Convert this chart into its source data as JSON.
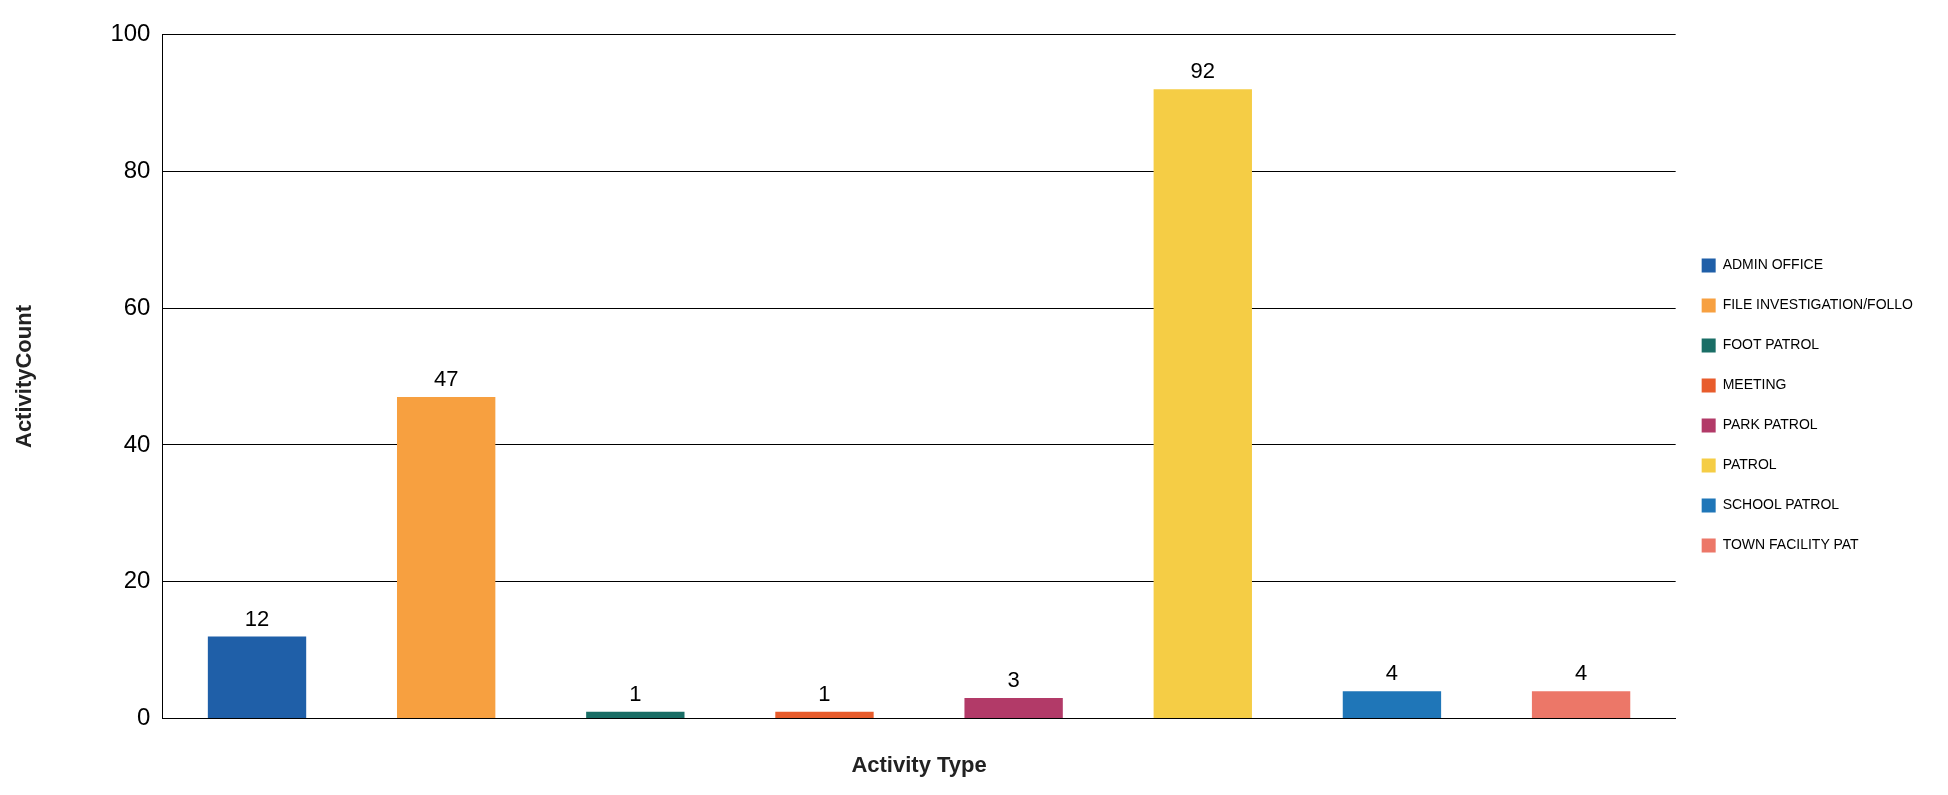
{
  "chart_data": {
    "type": "bar",
    "xlabel": "Activity Type",
    "ylabel": "ActivityCount",
    "categories": [
      null,
      null,
      null,
      null,
      null,
      null,
      null,
      null
    ],
    "series": [
      {
        "name": "ADMIN OFFICE",
        "color": "#1f5fa8",
        "values": [
          12,
          null,
          null,
          null,
          null,
          null,
          null,
          null
        ]
      },
      {
        "name": "FILE INVESTIGATION/FOLLO",
        "color": "#f7a040",
        "values": [
          null,
          47,
          null,
          null,
          null,
          null,
          null,
          null
        ]
      },
      {
        "name": "FOOT PATROL",
        "color": "#1a6e66",
        "values": [
          null,
          null,
          1,
          null,
          null,
          null,
          null,
          null
        ]
      },
      {
        "name": "MEETING",
        "color": "#e85c2c",
        "values": [
          null,
          null,
          null,
          1,
          null,
          null,
          null,
          null
        ]
      },
      {
        "name": "PARK PATROL",
        "color": "#b23a68",
        "values": [
          null,
          null,
          null,
          null,
          3,
          null,
          null,
          null
        ]
      },
      {
        "name": "PATROL",
        "color": "#f5cd45",
        "values": [
          null,
          null,
          null,
          null,
          null,
          92,
          null,
          null
        ]
      },
      {
        "name": "SCHOOL PATROL",
        "color": "#1f76b8",
        "values": [
          null,
          null,
          null,
          null,
          null,
          null,
          4,
          null
        ]
      },
      {
        "name": "TOWN FACILITY PAT",
        "color": "#ec7768",
        "values": [
          null,
          null,
          null,
          null,
          null,
          null,
          null,
          4
        ]
      }
    ],
    "ylim": [
      0,
      100
    ],
    "yticks": [
      0,
      20,
      40,
      60,
      80,
      100
    ],
    "grid": "y",
    "legend": "right",
    "data_labels": true
  }
}
